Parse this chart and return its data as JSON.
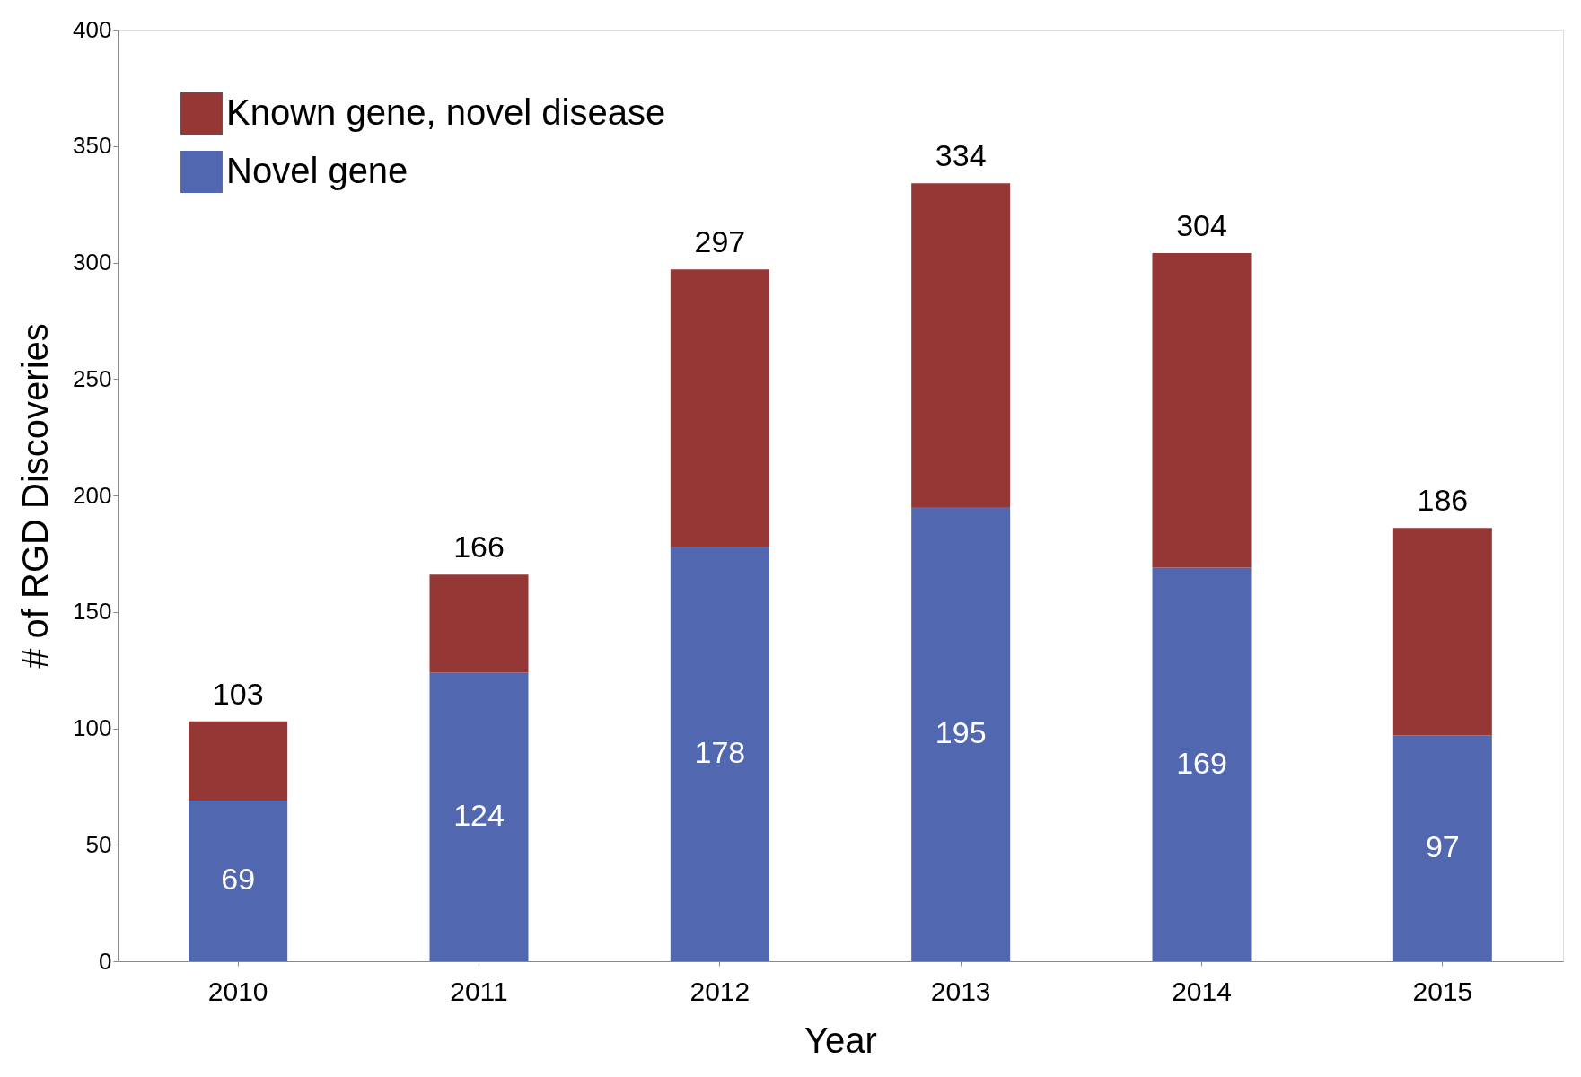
{
  "chart_data": {
    "type": "bar",
    "stacked": true,
    "xlabel": "Year",
    "ylabel": "# of RGD Discoveries",
    "categories": [
      "2010",
      "2011",
      "2012",
      "2013",
      "2014",
      "2015"
    ],
    "series": [
      {
        "name": "Novel gene",
        "color": "#5168b0",
        "values": [
          69,
          124,
          178,
          195,
          169,
          97
        ],
        "value_labels": [
          "69",
          "124",
          "178",
          "195",
          "169",
          "97"
        ]
      },
      {
        "name": "Known gene, novel disease",
        "color": "#953735",
        "values": [
          34,
          42,
          119,
          139,
          135,
          89
        ]
      }
    ],
    "totals": [
      "103",
      "166",
      "297",
      "334",
      "304",
      "186"
    ],
    "ylim": [
      0,
      400
    ],
    "yticks": [
      0,
      50,
      100,
      150,
      200,
      250,
      300,
      350,
      400
    ],
    "grid": false,
    "legend": "top left"
  }
}
